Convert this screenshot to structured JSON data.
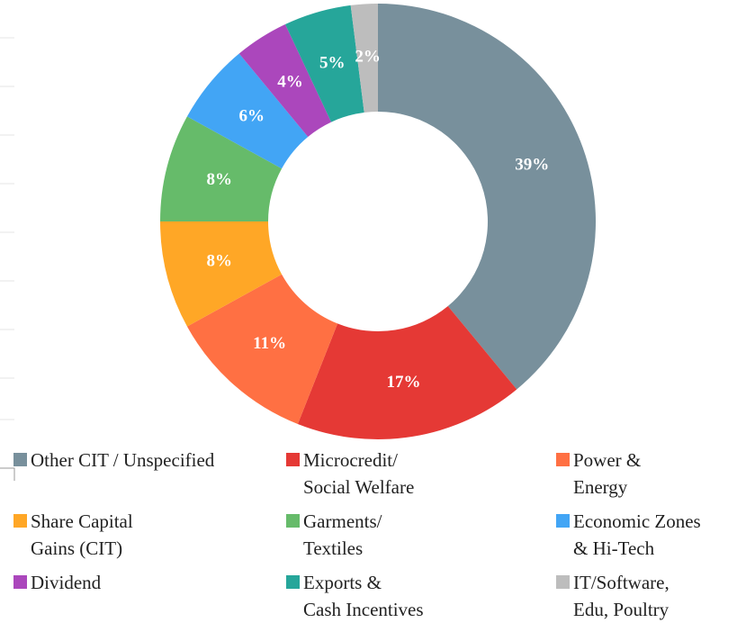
{
  "chart_data": {
    "type": "pie",
    "categories": [
      "Other CIT / Unspecified",
      "Microcredit/\nSocial Welfare",
      "Power &\nEnergy",
      "Share Capital\nGains (CIT)",
      "Garments/\nTextiles",
      "Economic Zones\n& Hi-Tech",
      "Dividend",
      "Exports &\nCash Incentives",
      "IT/Software,\nEdu, Poultry"
    ],
    "values": [
      39,
      17,
      11,
      8,
      8,
      6,
      4,
      5,
      2
    ],
    "value_labels": [
      "39%",
      "17%",
      "11%",
      "8%",
      "8%",
      "6%",
      "4%",
      "5%",
      "2%"
    ],
    "colors": [
      "#78909c",
      "#e53935",
      "#ff7043",
      "#ffa726",
      "#66bb6a",
      "#42a5f5",
      "#ab47bc",
      "#26a69a",
      "#bdbdbd"
    ],
    "legend": "bottom"
  }
}
